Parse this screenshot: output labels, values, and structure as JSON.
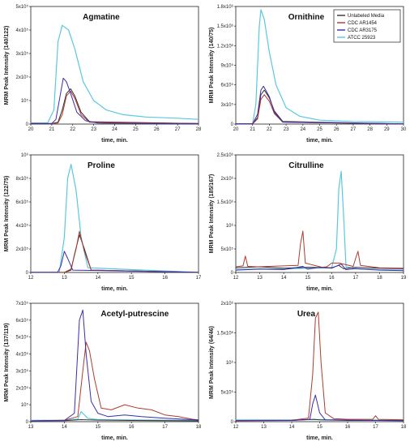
{
  "chart_data": [
    {
      "id": "agmatine",
      "type": "line",
      "title": "Agmatine",
      "xlabel": "time, min.",
      "ylabel": "MRM Peak Intensity (140/122)",
      "xlim": [
        20,
        28
      ],
      "ylim": [
        0,
        500000
      ],
      "xticks": [
        "20",
        "21",
        "22",
        "23",
        "24",
        "25",
        "26",
        "27",
        "28"
      ],
      "yticks": [
        "0",
        "10⁵",
        "2x10⁵",
        "3x10⁵",
        "4x10⁵",
        "5x10⁵"
      ],
      "series": [
        {
          "key": "unlabeled",
          "x": [
            20,
            21,
            21.3,
            21.5,
            21.7,
            21.9,
            22.1,
            22.4,
            22.8,
            28
          ],
          "y": [
            2000,
            2000,
            8000,
            60000,
            130000,
            150000,
            120000,
            50000,
            10000,
            2000
          ]
        },
        {
          "key": "ar1454",
          "x": [
            20,
            21,
            21.3,
            21.5,
            21.7,
            21.9,
            22.1,
            22.4,
            22.8,
            28
          ],
          "y": [
            2000,
            2000,
            5000,
            40000,
            120000,
            140000,
            110000,
            40000,
            8000,
            2000
          ]
        },
        {
          "key": "ar3175",
          "x": [
            20,
            21,
            21.2,
            21.4,
            21.55,
            21.7,
            21.9,
            22.2,
            22.6,
            23.2,
            28
          ],
          "y": [
            2000,
            2000,
            20000,
            120000,
            195000,
            180000,
            130000,
            50000,
            15000,
            4000,
            2000
          ]
        },
        {
          "key": "atcc",
          "x": [
            20,
            20.8,
            21.1,
            21.3,
            21.5,
            21.8,
            22.1,
            22.5,
            23,
            23.6,
            24.4,
            25.5,
            27,
            28
          ],
          "y": [
            5000,
            5000,
            60000,
            350000,
            420000,
            400000,
            320000,
            180000,
            100000,
            60000,
            40000,
            30000,
            25000,
            20000
          ]
        }
      ]
    },
    {
      "id": "ornithine",
      "type": "line",
      "title": "Ornithine",
      "xlabel": "time, min.",
      "ylabel": "MRM Peak Intensity (140/75)",
      "xlim": [
        20,
        30
      ],
      "ylim": [
        0,
        1800000
      ],
      "xticks": [
        "20",
        "21",
        "22",
        "23",
        "24",
        "25",
        "26",
        "27",
        "28",
        "29",
        "30"
      ],
      "yticks": [
        "0",
        "3x10⁵",
        "6x10⁵",
        "9x10⁵",
        "1.2x10⁶",
        "1.5x10⁶",
        "1.8x10⁶"
      ],
      "legend": {
        "position": "top-right",
        "items": [
          {
            "label": "Unlabeled Media",
            "color": "#333333"
          },
          {
            "label": "CDC AR1454",
            "color": "#b03a2e"
          },
          {
            "label": "CDC AR3175",
            "color": "#3f2ba8"
          },
          {
            "label": "ATCC 25923",
            "color": "#5bc8e0"
          }
        ]
      },
      "series": [
        {
          "key": "unlabeled",
          "x": [
            20,
            21,
            21.3,
            21.5,
            21.7,
            22,
            22.3,
            22.8,
            30
          ],
          "y": [
            2000,
            2000,
            100000,
            450000,
            520000,
            400000,
            200000,
            40000,
            2000
          ]
        },
        {
          "key": "ar1454",
          "x": [
            20,
            21,
            21.3,
            21.5,
            21.7,
            22,
            22.3,
            22.8,
            30
          ],
          "y": [
            2000,
            2000,
            80000,
            380000,
            450000,
            350000,
            160000,
            30000,
            2000
          ]
        },
        {
          "key": "ar3175",
          "x": [
            20,
            21,
            21.3,
            21.5,
            21.65,
            22,
            22.3,
            22.8,
            30
          ],
          "y": [
            2000,
            2000,
            150000,
            520000,
            580000,
            420000,
            180000,
            30000,
            2000
          ]
        },
        {
          "key": "atcc",
          "x": [
            20,
            21,
            21.2,
            21.4,
            21.5,
            21.7,
            22,
            22.4,
            23,
            23.8,
            25,
            27,
            30
          ],
          "y": [
            5000,
            5000,
            300000,
            1500000,
            1750000,
            1600000,
            1100000,
            600000,
            250000,
            120000,
            60000,
            40000,
            30000
          ]
        }
      ]
    },
    {
      "id": "proline",
      "type": "line",
      "title": "Proline",
      "xlabel": "time, min.",
      "ylabel": "MRM Peak Intensity (122/75)",
      "xlim": [
        12,
        17
      ],
      "ylim": [
        0,
        1000000
      ],
      "xticks": [
        "12",
        "13",
        "14",
        "15",
        "16",
        "17"
      ],
      "yticks": [
        "0",
        "2x10⁵",
        "4x10⁵",
        "6x10⁵",
        "8x10⁵",
        "10⁶"
      ],
      "series": [
        {
          "key": "unlabeled",
          "x": [
            12,
            13,
            13.2,
            13.3,
            13.45,
            13.6,
            13.8,
            17
          ],
          "y": [
            1000,
            1000,
            20000,
            150000,
            320000,
            200000,
            20000,
            1000
          ]
        },
        {
          "key": "ar1454",
          "x": [
            12,
            13,
            13.2,
            13.35,
            13.45,
            13.6,
            13.8,
            17
          ],
          "y": [
            1000,
            1000,
            30000,
            200000,
            350000,
            180000,
            20000,
            1000
          ]
        },
        {
          "key": "ar3175",
          "x": [
            12,
            12.8,
            12.9,
            13,
            13.1,
            13.25,
            17
          ],
          "y": [
            1000,
            1000,
            60000,
            180000,
            120000,
            20000,
            1000
          ]
        },
        {
          "key": "atcc",
          "x": [
            12,
            12.85,
            13,
            13.1,
            13.2,
            13.35,
            13.5,
            13.7,
            17
          ],
          "y": [
            1000,
            1000,
            300000,
            800000,
            920000,
            700000,
            300000,
            40000,
            1000
          ]
        }
      ]
    },
    {
      "id": "citrulline",
      "type": "line",
      "title": "Citrulline",
      "xlabel": "time, min.",
      "ylabel": "MRM Peak Intensity (185/167)",
      "xlim": [
        12,
        19
      ],
      "ylim": [
        0,
        2500000
      ],
      "xticks": [
        "12",
        "13",
        "14",
        "15",
        "16",
        "17",
        "18",
        "19"
      ],
      "yticks": [
        "0",
        "5x10⁵",
        "10⁶",
        "1.5x10⁶",
        "2x10⁶",
        "2.5x10⁶"
      ],
      "series": [
        {
          "key": "unlabeled",
          "x": [
            12,
            13,
            14,
            15,
            16,
            16.3,
            16.5,
            17,
            18,
            19
          ],
          "y": [
            100000,
            120000,
            90000,
            110000,
            100000,
            150000,
            80000,
            110000,
            90000,
            80000
          ]
        },
        {
          "key": "ar1454",
          "x": [
            12,
            12.3,
            12.4,
            12.5,
            12.9,
            14.6,
            14.7,
            14.8,
            14.9,
            15.6,
            15.8,
            16.0,
            16.3,
            16.9,
            17.0,
            17.1,
            17.2,
            18,
            19
          ],
          "y": [
            120000,
            140000,
            350000,
            130000,
            120000,
            150000,
            600000,
            880000,
            200000,
            110000,
            120000,
            200000,
            200000,
            130000,
            300000,
            450000,
            150000,
            100000,
            90000
          ]
        },
        {
          "key": "ar3175",
          "x": [
            12,
            13,
            14,
            14.8,
            15.0,
            15.5,
            16.0,
            16.4,
            16.6,
            17,
            18,
            19
          ],
          "y": [
            50000,
            70000,
            60000,
            130000,
            70000,
            110000,
            90000,
            180000,
            60000,
            80000,
            50000,
            40000
          ]
        },
        {
          "key": "atcc",
          "x": [
            12,
            13,
            14,
            15,
            16,
            16.2,
            16.3,
            16.4,
            16.5,
            16.6,
            17,
            18,
            19
          ],
          "y": [
            60000,
            80000,
            70000,
            90000,
            100000,
            500000,
            1800000,
            2150000,
            1200000,
            120000,
            80000,
            60000,
            50000
          ]
        }
      ]
    },
    {
      "id": "acetyl-putrescine",
      "type": "line",
      "title": "Acetyl-putrescine",
      "xlabel": "time, min.",
      "ylabel": "MRM Peak Intensity (137/119)",
      "xlim": [
        13,
        18
      ],
      "ylim": [
        0,
        700000
      ],
      "xticks": [
        "13",
        "14",
        "15",
        "16",
        "17",
        "18"
      ],
      "yticks": [
        "0",
        "10⁵",
        "2x10⁵",
        "3x10⁵",
        "4x10⁵",
        "5x10⁵",
        "6x10⁵",
        "7x10⁵"
      ],
      "series": [
        {
          "key": "unlabeled",
          "x": [
            13,
            14,
            14.5,
            15,
            16,
            17,
            18
          ],
          "y": [
            5000,
            6000,
            12000,
            9000,
            7000,
            6000,
            5000
          ]
        },
        {
          "key": "ar1454",
          "x": [
            13,
            14,
            14.4,
            14.55,
            14.65,
            14.75,
            14.9,
            15.1,
            15.4,
            15.8,
            16.2,
            16.6,
            17,
            17.4,
            17.8,
            18
          ],
          "y": [
            5000,
            8000,
            30000,
            300000,
            470000,
            420000,
            250000,
            80000,
            70000,
            100000,
            80000,
            70000,
            40000,
            30000,
            15000,
            10000
          ]
        },
        {
          "key": "ar3175",
          "x": [
            13,
            14,
            14.3,
            14.45,
            14.55,
            14.65,
            14.8,
            15,
            15.3,
            15.8,
            16.3,
            17,
            17.5,
            18
          ],
          "y": [
            5000,
            7000,
            50000,
            600000,
            660000,
            400000,
            120000,
            50000,
            30000,
            40000,
            30000,
            20000,
            15000,
            10000
          ]
        },
        {
          "key": "atcc",
          "x": [
            13,
            14,
            14.4,
            14.5,
            14.7,
            15,
            16,
            17,
            18
          ],
          "y": [
            8000,
            9000,
            15000,
            60000,
            20000,
            12000,
            10000,
            9000,
            8000
          ]
        }
      ]
    },
    {
      "id": "urea",
      "type": "line",
      "title": "Urea",
      "xlabel": "time, min.",
      "ylabel": "MRM Peak Intensity (64/46)",
      "xlim": [
        12,
        18
      ],
      "ylim": [
        0,
        2000000
      ],
      "xticks": [
        "12",
        "13",
        "14",
        "15",
        "16",
        "17",
        "18"
      ],
      "yticks": [
        "0",
        "5x10⁵",
        "10⁶",
        "1.5x10⁶",
        "2x10⁶"
      ],
      "series": [
        {
          "key": "unlabeled",
          "x": [
            12,
            14,
            14.8,
            15,
            16,
            18
          ],
          "y": [
            20000,
            20000,
            40000,
            30000,
            20000,
            20000
          ]
        },
        {
          "key": "ar1454",
          "x": [
            12,
            14,
            14.6,
            14.75,
            14.85,
            14.95,
            15.05,
            15.2,
            15.5,
            16,
            16.9,
            17,
            17.1,
            18
          ],
          "y": [
            20000,
            25000,
            60000,
            800000,
            1750000,
            1850000,
            1000000,
            150000,
            50000,
            40000,
            40000,
            100000,
            40000,
            30000
          ]
        },
        {
          "key": "ar3175",
          "x": [
            12,
            14,
            14.65,
            14.75,
            14.85,
            15,
            15.2,
            18
          ],
          "y": [
            15000,
            20000,
            40000,
            300000,
            450000,
            150000,
            30000,
            15000
          ]
        },
        {
          "key": "atcc",
          "x": [
            12,
            14,
            15,
            16,
            17,
            18
          ],
          "y": [
            30000,
            30000,
            35000,
            30000,
            30000,
            30000
          ]
        }
      ]
    }
  ]
}
